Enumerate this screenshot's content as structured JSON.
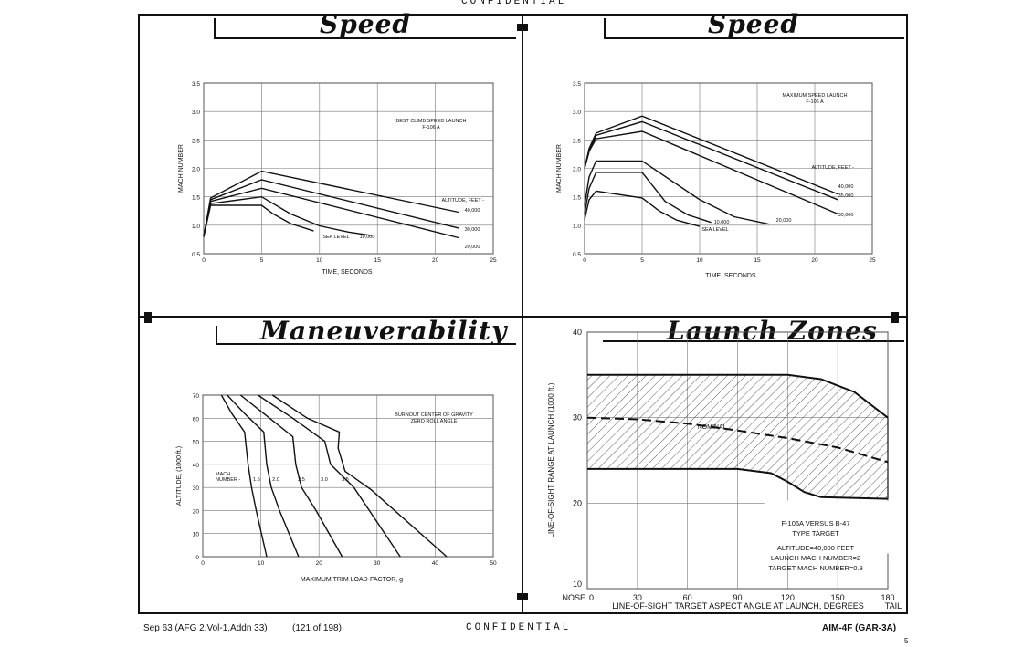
{
  "header": {
    "classification": "CONFIDENTIAL"
  },
  "footer": {
    "left": "Sep 63 (AFG 2,Vol-1,Addn 33)",
    "page_of": "(121 of 198)",
    "classification": "CONFIDENTIAL",
    "right": "AIM-4F (GAR-3A)",
    "page_number": "5"
  },
  "panels": {
    "tl_title": "Speed",
    "tr_title": "Speed",
    "bl_title": "Maneuverability",
    "br_title": "Launch Zones"
  },
  "chart_data": [
    {
      "id": "speed-best-climb",
      "type": "line",
      "xlabel": "TIME, SECONDS",
      "ylabel": "MACH NUMBER",
      "xlim": [
        0,
        25
      ],
      "ylim": [
        0.5,
        3.5
      ],
      "xticks": [
        "0",
        "5",
        "10",
        "15",
        "20",
        "25"
      ],
      "yticks": [
        "0.5",
        "1.0",
        "1.5",
        "2.0",
        "2.5",
        "3.0",
        "3.5"
      ],
      "grid": true,
      "annotation": [
        "BEST CLIMB SPEED LAUNCH",
        "F-106 A"
      ],
      "legend_title": "ALTITUDE, FEET -",
      "series": [
        {
          "name": "40,000",
          "x": [
            0,
            0.6,
            5,
            22
          ],
          "y": [
            0.8,
            1.48,
            1.95,
            1.23
          ]
        },
        {
          "name": "30,000",
          "x": [
            0,
            0.6,
            5,
            22
          ],
          "y": [
            0.8,
            1.45,
            1.8,
            0.95
          ]
        },
        {
          "name": "20,000",
          "x": [
            0,
            0.6,
            5,
            22
          ],
          "y": [
            0.8,
            1.42,
            1.65,
            0.78
          ]
        },
        {
          "name": "10,000",
          "x": [
            0,
            0.6,
            5,
            7.5,
            10,
            12.5,
            14.5
          ],
          "y": [
            0.8,
            1.38,
            1.5,
            1.2,
            0.99,
            0.88,
            0.82
          ]
        },
        {
          "name": "SEA LEVEL",
          "x": [
            0,
            0.6,
            5,
            6,
            7.5,
            9.5
          ],
          "y": [
            0.8,
            1.35,
            1.35,
            1.2,
            1.03,
            0.9
          ]
        }
      ]
    },
    {
      "id": "speed-max",
      "type": "line",
      "xlabel": "TIME, SECONDS",
      "ylabel": "MACH NUMBER",
      "xlim": [
        0,
        25
      ],
      "ylim": [
        0.5,
        3.5
      ],
      "xticks": [
        "0",
        "5",
        "10",
        "15",
        "20",
        "25"
      ],
      "yticks": [
        "0.5",
        "1.0",
        "1.5",
        "2.0",
        "2.5",
        "3.0",
        "3.5"
      ],
      "grid": true,
      "annotation": [
        "MAXIMUM SPEED LAUNCH",
        "F-106 A"
      ],
      "legend_title": "ALTITUDE, FEET -",
      "series": [
        {
          "name": "40,000",
          "x": [
            0,
            0.4,
            1.0,
            5,
            22
          ],
          "y": [
            2.0,
            2.35,
            2.62,
            2.92,
            1.55
          ]
        },
        {
          "name": "35,000",
          "x": [
            0,
            0.4,
            1.0,
            5,
            22
          ],
          "y": [
            2.0,
            2.3,
            2.58,
            2.82,
            1.45
          ]
        },
        {
          "name": "30,000",
          "x": [
            0,
            0.4,
            1.0,
            5,
            22
          ],
          "y": [
            2.0,
            2.3,
            2.52,
            2.65,
            1.2
          ]
        },
        {
          "name": "20,000",
          "x": [
            0,
            0.4,
            1.0,
            5,
            10,
            13,
            16
          ],
          "y": [
            1.35,
            1.85,
            2.13,
            2.13,
            1.45,
            1.15,
            1.02
          ]
        },
        {
          "name": "10,000",
          "x": [
            0,
            0.4,
            1.0,
            5,
            7,
            9,
            11
          ],
          "y": [
            1.2,
            1.65,
            1.93,
            1.93,
            1.42,
            1.18,
            1.05
          ]
        },
        {
          "name": "SEA LEVEL",
          "x": [
            0,
            0.4,
            1.0,
            5,
            6.5,
            8,
            10
          ],
          "y": [
            1.1,
            1.45,
            1.6,
            1.48,
            1.25,
            1.09,
            0.98
          ]
        }
      ]
    },
    {
      "id": "maneuverability",
      "type": "line",
      "xlabel": "MAXIMUM TRIM LOAD-FACTOR, g",
      "ylabel": "ALTITUDE, (1000 ft.)",
      "xlim": [
        0,
        50
      ],
      "ylim": [
        0,
        70
      ],
      "xticks": [
        "0",
        "10",
        "20",
        "30",
        "40",
        "50"
      ],
      "yticks": [
        "0",
        "10",
        "20",
        "30",
        "40",
        "50",
        "60",
        "70"
      ],
      "grid": true,
      "annotation": [
        "BURNOUT CENTER OF GRAVITY",
        "ZERO ROLL ANGLE"
      ],
      "legend_title": "MACH NUMBER -",
      "series": [
        {
          "name": "1.5",
          "x": [
            3.2,
            5.0,
            7.2,
            7.8,
            8.4,
            9.2,
            11
          ],
          "y": [
            70,
            62,
            54,
            40,
            30,
            20,
            0
          ]
        },
        {
          "name": "2.0",
          "x": [
            4.2,
            7.2,
            10.5,
            11.0,
            11.8,
            13.2,
            16.5
          ],
          "y": [
            70,
            62,
            54,
            40,
            30,
            20,
            0
          ]
        },
        {
          "name": "2.5",
          "x": [
            6.5,
            10.5,
            15.5,
            16,
            17,
            19.5,
            24
          ],
          "y": [
            70,
            62,
            52,
            40,
            30,
            20,
            0
          ]
        },
        {
          "name": "3.0",
          "x": [
            9.5,
            15.5,
            21,
            22,
            26,
            34
          ],
          "y": [
            70,
            60,
            50,
            40,
            30,
            0
          ]
        },
        {
          "name": "3.5",
          "x": [
            12.0,
            18.0,
            23.5,
            23.3,
            24.5,
            29,
            42
          ],
          "y": [
            70,
            60,
            54,
            47,
            37,
            29,
            0
          ]
        }
      ]
    },
    {
      "id": "launch-zones",
      "type": "area",
      "xlabel": "LINE-OF-SIGHT TARGET ASPECT ANGLE AT LAUNCH, DEGREES",
      "ylabel": "LINE-OF-SIGHT RANGE AT LAUNCH (1000 ft.)",
      "xlim": [
        0,
        180
      ],
      "ylim": [
        10,
        40
      ],
      "xticks": [
        "NOSE 0",
        "30",
        "60",
        "90",
        "120",
        "150",
        "180 TAIL"
      ],
      "yticks": [
        "10",
        "20",
        "30",
        "40"
      ],
      "grid": true,
      "annotation": [
        "F-106A VERSUS B-47",
        "TYPE TARGET",
        "ALTITUDE=40,000 FEET",
        "LAUNCH MACH NUMBER=2",
        "TARGET MACH NUMBER=0.9"
      ],
      "nominal_label": "NOMINAL",
      "upper": {
        "x": [
          0,
          120,
          140,
          160,
          180
        ],
        "y": [
          35,
          35,
          34.5,
          33,
          30
        ]
      },
      "lower": {
        "x": [
          0,
          90,
          110,
          120,
          130,
          140,
          180
        ],
        "y": [
          24,
          24,
          23.5,
          22.5,
          21.3,
          20.7,
          20.5
        ]
      },
      "nominal": {
        "x": [
          0,
          30,
          60,
          90,
          120,
          150,
          180
        ],
        "y": [
          30,
          29.8,
          29.3,
          28.5,
          27.6,
          26.5,
          24.8
        ]
      }
    }
  ]
}
